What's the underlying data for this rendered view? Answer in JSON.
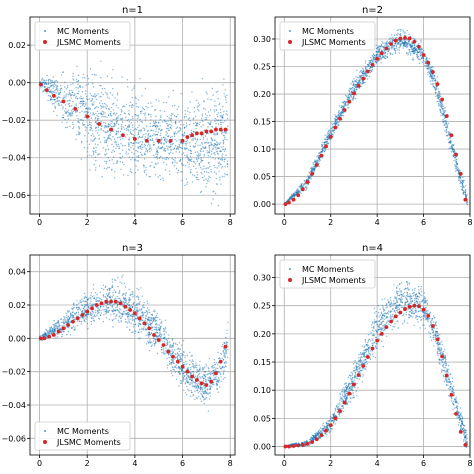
{
  "figure": {
    "background": "#ffffff"
  },
  "chart_data": [
    {
      "type": "scatter",
      "title": "n=1",
      "xlim": [
        -0.4,
        8.2
      ],
      "ylim": [
        -0.07,
        0.035
      ],
      "xticks": [
        0,
        2,
        4,
        6,
        8
      ],
      "yticks": [
        0.02,
        0.0,
        -0.02,
        -0.04,
        -0.06
      ],
      "ytick_labels": [
        "0.02",
        "0.00",
        "−0.02",
        "−0.04",
        "−0.06"
      ],
      "grid": true,
      "legend": {
        "placement": "upper-left"
      },
      "series": [
        {
          "name": "MC Moments",
          "kind": "cloud",
          "color": "#1f77b4",
          "center": [
            [
              0,
              0
            ],
            [
              1,
              -0.009
            ],
            [
              2,
              -0.018
            ],
            [
              3,
              -0.024
            ],
            [
              4,
              -0.028
            ],
            [
              5,
              -0.03
            ],
            [
              6,
              -0.031
            ],
            [
              7,
              -0.03
            ],
            [
              8,
              -0.03
            ]
          ],
          "spread": [
            [
              0,
              0.001
            ],
            [
              1,
              0.01
            ],
            [
              2,
              0.015
            ],
            [
              3,
              0.017
            ],
            [
              4,
              0.016
            ],
            [
              5,
              0.014
            ],
            [
              6,
              0.013
            ],
            [
              7,
              0.02
            ],
            [
              8,
              0.02
            ]
          ]
        },
        {
          "name": "JLSMC Moments",
          "kind": "points",
          "color": "#d62728",
          "x": [
            0.05,
            0.3,
            0.6,
            1.0,
            1.5,
            2.0,
            2.5,
            3.0,
            3.5,
            4.0,
            4.5,
            5.0,
            5.5,
            6.0,
            6.2,
            6.4,
            6.6,
            6.8,
            7.0,
            7.2,
            7.4,
            7.6,
            7.8
          ],
          "y": [
            -0.001,
            -0.004,
            -0.007,
            -0.01,
            -0.014,
            -0.018,
            -0.022,
            -0.025,
            -0.028,
            -0.03,
            -0.031,
            -0.031,
            -0.031,
            -0.031,
            -0.029,
            -0.028,
            -0.027,
            -0.027,
            -0.026,
            -0.026,
            -0.025,
            -0.025,
            -0.025
          ]
        }
      ]
    },
    {
      "type": "scatter",
      "title": "n=2",
      "xlim": [
        -0.4,
        8.0
      ],
      "ylim": [
        -0.018,
        0.34
      ],
      "xticks": [
        0,
        2,
        4,
        6,
        8
      ],
      "yticks": [
        0.0,
        0.05,
        0.1,
        0.15,
        0.2,
        0.25,
        0.3
      ],
      "ytick_labels": [
        "0.00",
        "0.05",
        "0.10",
        "0.15",
        "0.20",
        "0.25",
        "0.30"
      ],
      "grid": true,
      "legend": {
        "placement": "upper-left"
      },
      "series": [
        {
          "name": "MC Moments",
          "kind": "cloud",
          "color": "#1f77b4",
          "center": [
            [
              0,
              0
            ],
            [
              1,
              0.04
            ],
            [
              2,
              0.13
            ],
            [
              3,
              0.21
            ],
            [
              4,
              0.27
            ],
            [
              5,
              0.3
            ],
            [
              6,
              0.27
            ],
            [
              6.5,
              0.22
            ],
            [
              7,
              0.14
            ],
            [
              7.5,
              0.06
            ],
            [
              7.9,
              0.005
            ]
          ],
          "spread": [
            [
              0,
              0.001
            ],
            [
              1,
              0.008
            ],
            [
              2,
              0.01
            ],
            [
              3,
              0.012
            ],
            [
              4,
              0.012
            ],
            [
              5,
              0.013
            ],
            [
              6,
              0.012
            ],
            [
              7,
              0.015
            ],
            [
              7.9,
              0.01
            ]
          ]
        },
        {
          "name": "JLSMC Moments",
          "kind": "points",
          "color": "#d62728",
          "x": [
            0.05,
            0.2,
            0.4,
            0.6,
            0.8,
            1.0,
            1.2,
            1.4,
            1.6,
            1.8,
            2.0,
            2.2,
            2.4,
            2.6,
            2.8,
            3.0,
            3.2,
            3.4,
            3.6,
            3.8,
            4.0,
            4.2,
            4.4,
            4.6,
            4.8,
            5.0,
            5.2,
            5.4,
            5.6,
            5.8,
            6.0,
            6.2,
            6.4,
            6.6,
            6.8,
            7.0,
            7.2,
            7.4,
            7.6,
            7.8
          ],
          "y": [
            0.0,
            0.003,
            0.008,
            0.016,
            0.027,
            0.04,
            0.055,
            0.071,
            0.088,
            0.105,
            0.122,
            0.139,
            0.155,
            0.171,
            0.186,
            0.201,
            0.215,
            0.228,
            0.241,
            0.253,
            0.264,
            0.274,
            0.283,
            0.291,
            0.297,
            0.301,
            0.302,
            0.301,
            0.295,
            0.286,
            0.271,
            0.257,
            0.24,
            0.218,
            0.19,
            0.16,
            0.125,
            0.09,
            0.055,
            0.008
          ]
        }
      ]
    },
    {
      "type": "scatter",
      "title": "n=3",
      "xlim": [
        -0.4,
        8.2
      ],
      "ylim": [
        -0.07,
        0.05
      ],
      "xticks": [
        0,
        2,
        4,
        6,
        8
      ],
      "yticks": [
        0.04,
        0.02,
        0.0,
        -0.02,
        -0.04,
        -0.06
      ],
      "ytick_labels": [
        "0.04",
        "0.02",
        "0.00",
        "−0.02",
        "−0.04",
        "−0.06"
      ],
      "grid": true,
      "legend": {
        "placement": "lower-left"
      },
      "series": [
        {
          "name": "MC Moments",
          "kind": "cloud",
          "color": "#1f77b4",
          "center": [
            [
              0,
              0
            ],
            [
              1,
              0.008
            ],
            [
              2,
              0.018
            ],
            [
              3,
              0.023
            ],
            [
              4,
              0.017
            ],
            [
              5,
              0.003
            ],
            [
              6,
              -0.018
            ],
            [
              6.5,
              -0.025
            ],
            [
              7,
              -0.028
            ],
            [
              7.5,
              -0.022
            ],
            [
              7.9,
              -0.005
            ]
          ],
          "spread": [
            [
              0,
              0.001
            ],
            [
              1,
              0.004
            ],
            [
              2,
              0.007
            ],
            [
              3,
              0.009
            ],
            [
              4,
              0.009
            ],
            [
              5,
              0.009
            ],
            [
              6,
              0.008
            ],
            [
              7,
              0.01
            ],
            [
              7.9,
              0.01
            ]
          ]
        },
        {
          "name": "JLSMC Moments",
          "kind": "points",
          "color": "#d62728",
          "x": [
            0.05,
            0.2,
            0.4,
            0.6,
            0.8,
            1.0,
            1.2,
            1.4,
            1.6,
            1.8,
            2.0,
            2.2,
            2.4,
            2.6,
            2.8,
            3.0,
            3.2,
            3.4,
            3.6,
            3.8,
            4.0,
            4.2,
            4.4,
            4.6,
            4.8,
            5.0,
            5.2,
            5.4,
            5.6,
            5.8,
            6.0,
            6.2,
            6.4,
            6.6,
            6.8,
            7.0,
            7.2,
            7.4,
            7.6,
            7.8
          ],
          "y": [
            0.0,
            0.0,
            0.001,
            0.002,
            0.004,
            0.006,
            0.008,
            0.01,
            0.012,
            0.014,
            0.016,
            0.018,
            0.02,
            0.021,
            0.022,
            0.022,
            0.022,
            0.021,
            0.019,
            0.017,
            0.015,
            0.012,
            0.009,
            0.006,
            0.002,
            -0.001,
            -0.004,
            -0.008,
            -0.011,
            -0.014,
            -0.017,
            -0.02,
            -0.023,
            -0.025,
            -0.027,
            -0.028,
            -0.026,
            -0.021,
            -0.014,
            -0.005
          ]
        }
      ]
    },
    {
      "type": "scatter",
      "title": "n=4",
      "xlim": [
        -0.4,
        8.0
      ],
      "ylim": [
        -0.015,
        0.34
      ],
      "xticks": [
        0,
        2,
        4,
        6,
        8
      ],
      "yticks": [
        0.0,
        0.05,
        0.1,
        0.15,
        0.2,
        0.25,
        0.3
      ],
      "ytick_labels": [
        "0.00",
        "0.05",
        "0.10",
        "0.15",
        "0.20",
        "0.25",
        "0.30"
      ],
      "grid": true,
      "legend": {
        "placement": "upper-left"
      },
      "series": [
        {
          "name": "MC Moments",
          "kind": "cloud",
          "color": "#1f77b4",
          "center": [
            [
              0,
              0
            ],
            [
              1,
              0.005
            ],
            [
              2,
              0.04
            ],
            [
              3,
              0.12
            ],
            [
              4,
              0.21
            ],
            [
              5,
              0.26
            ],
            [
              6,
              0.25
            ],
            [
              6.5,
              0.2
            ],
            [
              7,
              0.13
            ],
            [
              7.5,
              0.06
            ],
            [
              7.9,
              0.005
            ]
          ],
          "spread": [
            [
              0,
              0.001
            ],
            [
              1,
              0.004
            ],
            [
              2,
              0.01
            ],
            [
              3,
              0.02
            ],
            [
              4,
              0.025
            ],
            [
              5,
              0.025
            ],
            [
              6,
              0.022
            ],
            [
              7,
              0.02
            ],
            [
              7.9,
              0.01
            ]
          ]
        },
        {
          "name": "JLSMC Moments",
          "kind": "points",
          "color": "#d62728",
          "x": [
            0.05,
            0.2,
            0.4,
            0.6,
            0.8,
            1.0,
            1.2,
            1.4,
            1.6,
            1.8,
            2.0,
            2.2,
            2.4,
            2.6,
            2.8,
            3.0,
            3.2,
            3.4,
            3.6,
            3.8,
            4.0,
            4.2,
            4.4,
            4.6,
            4.8,
            5.0,
            5.2,
            5.4,
            5.6,
            5.8,
            6.0,
            6.2,
            6.4,
            6.6,
            6.8,
            7.0,
            7.2,
            7.4,
            7.6,
            7.8
          ],
          "y": [
            0.0,
            0.0,
            0.001,
            0.002,
            0.003,
            0.005,
            0.008,
            0.013,
            0.02,
            0.028,
            0.038,
            0.05,
            0.063,
            0.078,
            0.094,
            0.11,
            0.127,
            0.143,
            0.159,
            0.174,
            0.188,
            0.2,
            0.212,
            0.222,
            0.231,
            0.238,
            0.244,
            0.248,
            0.25,
            0.249,
            0.243,
            0.232,
            0.214,
            0.19,
            0.16,
            0.126,
            0.092,
            0.058,
            0.026,
            0.003
          ]
        }
      ]
    }
  ]
}
